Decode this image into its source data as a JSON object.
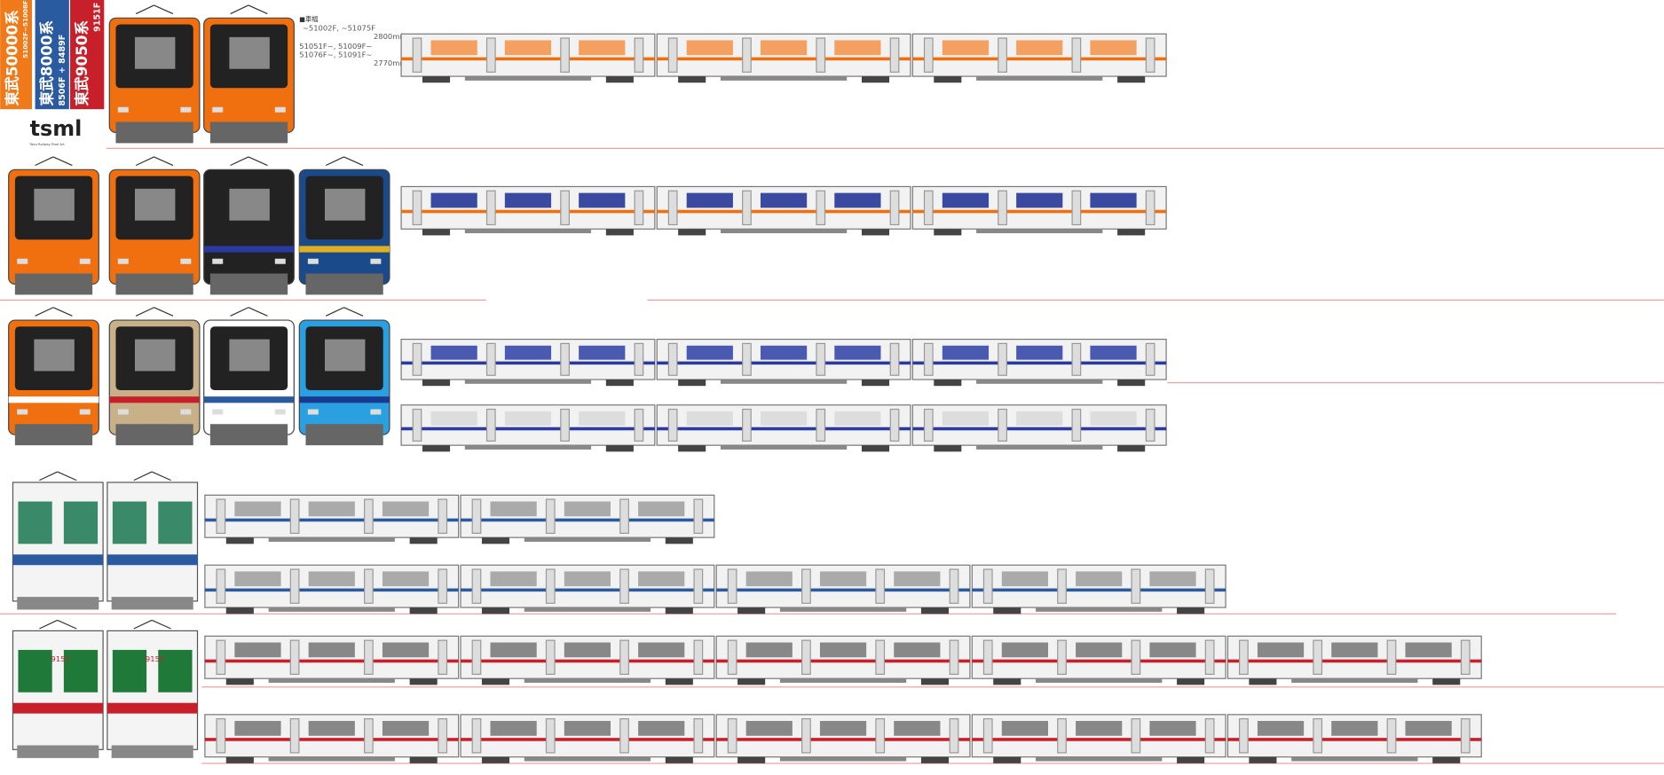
{
  "labels": [
    {
      "name": "東武50000系",
      "sub": "51002F~51008F"
    },
    {
      "name": "東武8000系",
      "sub": "8506F + 8489F"
    },
    {
      "name": "東武9050系",
      "sub": "9151F"
    }
  ],
  "logo": "tsml",
  "logo_sub": "Tobu Railway Pixel Art",
  "note": {
    "title": "■車幅",
    "lines": [
      "~51002F, ~51075F",
      "2800mm",
      "51051F~, 51009F~",
      "51076F~, 51091F~",
      "2770mm"
    ]
  },
  "front_numbers": [
    "9151",
    "9151"
  ]
}
